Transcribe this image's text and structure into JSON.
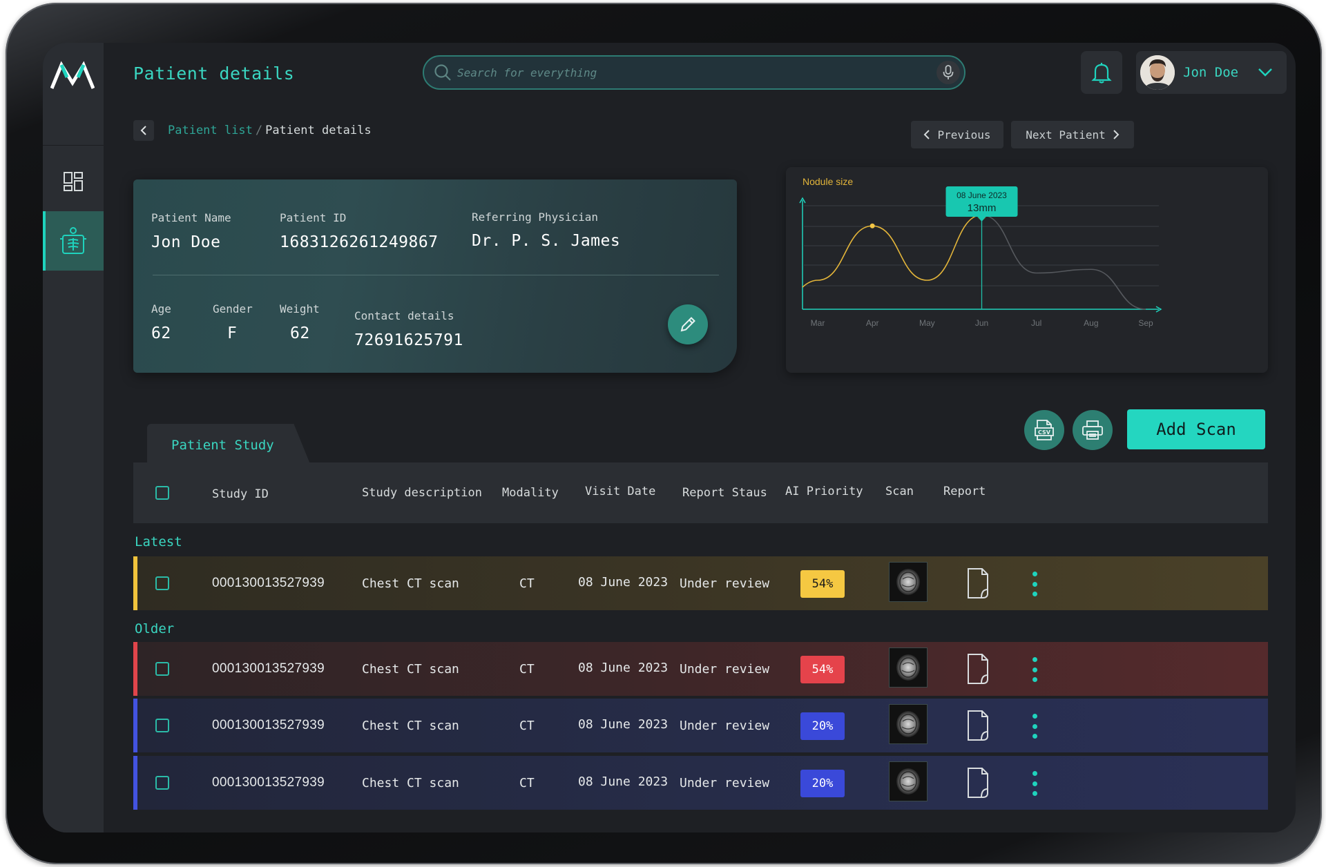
{
  "header": {
    "page_title": "Patient details",
    "search_placeholder": "Search for everything",
    "user_name": "Jon Doe"
  },
  "breadcrumb": {
    "parent": "Patient list",
    "separator": "/",
    "current": "Patient details"
  },
  "nav_buttons": {
    "previous": "Previous",
    "next": "Next Patient"
  },
  "patient": {
    "name_label": "Patient Name",
    "name": "Jon Doe",
    "id_label": "Patient ID",
    "id": "1683126261249867",
    "physician_label": "Referring Physician",
    "physician": "Dr. P. S. James",
    "age_label": "Age",
    "age": "62",
    "gender_label": "Gender",
    "gender": "F",
    "weight_label": "Weight",
    "weight": "62",
    "contact_label": "Contact details",
    "contact": "72691625791"
  },
  "chart_data": {
    "type": "line",
    "title": "Nodule size",
    "categories": [
      "Mar",
      "Apr",
      "May",
      "Jun",
      "Jul",
      "Aug",
      "Sep"
    ],
    "series": [
      {
        "values": [
          4,
          11.5,
          4,
          13,
          5,
          5.5,
          0
        ]
      }
    ],
    "highlight_points": [
      {
        "x": "Apr",
        "y": 11.5
      },
      {
        "x": "Jun",
        "y": 13
      }
    ],
    "tooltip": {
      "date": "08 June 2023",
      "value": "13mm",
      "x": "Jun"
    },
    "ylim": [
      0,
      16
    ],
    "grid": true,
    "colors": {
      "line": "#e3b53a",
      "grid": "#3a3d42",
      "axis": "#1fd3bd"
    }
  },
  "study": {
    "tab_label": "Patient Study",
    "add_scan": "Add Scan",
    "csv_icon": "csv-file-icon",
    "print_icon": "printer-icon",
    "columns": [
      "Study ID",
      "Study description",
      "Modality",
      "Visit Date",
      "Report Staus",
      "AI Priority",
      "Scan",
      "Report"
    ],
    "groups": {
      "latest": "Latest",
      "older": "Older"
    },
    "latest_rows": [
      {
        "id": "000130013527939",
        "desc": "Chest CT scan",
        "modality": "CT",
        "date": "08 June 2023",
        "status": "Under review",
        "priority": "54%",
        "level": "medium"
      }
    ],
    "older_rows": [
      {
        "id": "000130013527939",
        "desc": "Chest CT scan",
        "modality": "CT",
        "date": "08 June 2023",
        "status": "Under review",
        "priority": "54%",
        "level": "high"
      },
      {
        "id": "000130013527939",
        "desc": "Chest CT scan",
        "modality": "CT",
        "date": "08 June 2023",
        "status": "Under review",
        "priority": "20%",
        "level": "low"
      },
      {
        "id": "000130013527939",
        "desc": "Chest CT scan",
        "modality": "CT",
        "date": "08 June 2023",
        "status": "Under review",
        "priority": "20%",
        "level": "low"
      }
    ],
    "level_colors": {
      "medium": {
        "bar": "#f0c33c",
        "badge": "#f5c842",
        "badge_text": "#1a1a1a",
        "row": "linear-gradient(90deg,#2f2c22 0%,#3a3424 45%,#4a4128 100%)"
      },
      "high": {
        "bar": "#e0454b",
        "badge": "#e5434b",
        "badge_text": "#ffffff",
        "row": "linear-gradient(90deg,#2e2426 0%,#3d2628 45%,#552a2c 100%)"
      },
      "low": {
        "bar": "#4353e0",
        "badge": "#3a49d9",
        "badge_text": "#ffffff",
        "row": "linear-gradient(90deg,#22263a 0%,#262c48 50%,#2a3056 100%)"
      }
    }
  },
  "icons": {
    "logo": "brand-logo-icon",
    "dashboard": "dashboard-grid-icon",
    "patient": "patient-xray-icon",
    "search": "search-icon",
    "mic": "microphone-icon",
    "bell": "bell-icon",
    "chevron_down": "chevron-down-icon",
    "chevron_left": "chevron-left-icon",
    "chevron_right": "chevron-right-icon",
    "edit": "pencil-icon",
    "scan_thumb": "ct-scan-thumbnail",
    "report": "report-document-icon",
    "kebab": "more-vertical-icon"
  }
}
